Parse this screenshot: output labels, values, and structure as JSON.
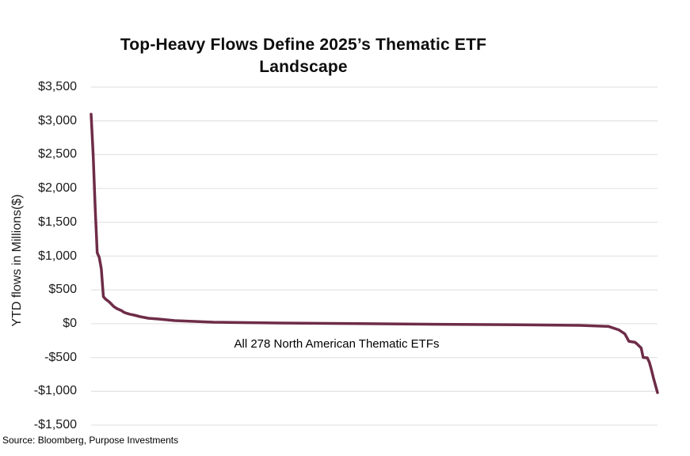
{
  "title_display": "Top-Heavy Flows Define 2025’s Thematic ETF\nLandscape",
  "annotation": "All 278 North American Thematic ETFs",
  "source": "Source: Bloomberg, Purpose Investments",
  "colors": {
    "line": "#6e2c48",
    "grid": "#e4e4e4",
    "title_text": "#0d0d0d",
    "axis_text": "#1a1a1a"
  },
  "chart_data": {
    "type": "line",
    "title": "Top-Heavy Flows Define 2025’s Thematic ETF Landscape",
    "xlabel": "",
    "ylabel": "YTD flows in Millions($)",
    "ylim": [
      -1500,
      3500
    ],
    "yticks": [
      3500,
      3000,
      2500,
      2000,
      1500,
      1000,
      500,
      0,
      -500,
      -1000,
      -1500
    ],
    "ytick_labels": [
      "$3,500",
      "$3,000",
      "$2,500",
      "$2,000",
      "$1,500",
      "$1,000",
      "$500",
      "$0",
      "-$500",
      "-$1,000",
      "-$1,500"
    ],
    "x_range": [
      1,
      278
    ],
    "x_description": "ETFs ranked by YTD flows (no x tick labels shown)",
    "grid": true,
    "legend": false,
    "annotation": "All 278 North American Thematic ETFs",
    "series": [
      {
        "name": "YTD flows in Millions($) per ETF, sorted descending",
        "color": "#6e2c48",
        "points": [
          [
            1,
            3100
          ],
          [
            2,
            2500
          ],
          [
            3,
            1700
          ],
          [
            4,
            1050
          ],
          [
            5,
            980
          ],
          [
            6,
            810
          ],
          [
            7,
            400
          ],
          [
            8,
            365
          ],
          [
            10,
            320
          ],
          [
            12,
            257
          ],
          [
            13,
            235
          ],
          [
            14,
            218
          ],
          [
            15,
            205
          ],
          [
            16,
            192
          ],
          [
            17,
            170
          ],
          [
            18,
            158
          ],
          [
            20,
            140
          ],
          [
            22,
            128
          ],
          [
            25,
            104
          ],
          [
            29,
            81
          ],
          [
            34,
            69
          ],
          [
            42,
            46
          ],
          [
            61,
            22
          ],
          [
            92,
            10
          ],
          [
            131,
            2
          ],
          [
            170,
            -8
          ],
          [
            210,
            -15
          ],
          [
            240,
            -25
          ],
          [
            254,
            -40
          ],
          [
            259,
            -90
          ],
          [
            262,
            -150
          ],
          [
            264,
            -260
          ],
          [
            267,
            -275
          ],
          [
            268,
            -300
          ],
          [
            270,
            -360
          ],
          [
            271,
            -500
          ],
          [
            273,
            -505
          ],
          [
            274,
            -570
          ],
          [
            275,
            -680
          ],
          [
            276,
            -800
          ],
          [
            277,
            -910
          ],
          [
            278,
            -1020
          ]
        ]
      }
    ]
  }
}
